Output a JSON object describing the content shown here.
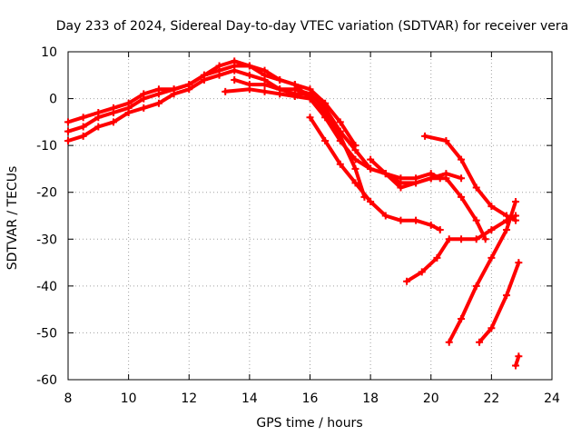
{
  "chart_data": {
    "type": "line",
    "title": "Day 233 of 2024, Sidereal Day-to-day VTEC variation (SDTVAR) for receiver vera",
    "xlabel": "GPS time / hours",
    "ylabel": "SDTVAR / TECUs",
    "xlim": [
      8,
      24
    ],
    "ylim": [
      -60,
      10
    ],
    "xticks": [
      8,
      10,
      12,
      14,
      16,
      18,
      20,
      22,
      24
    ],
    "yticks": [
      10,
      0,
      -10,
      -20,
      -30,
      -40,
      -50,
      -60
    ],
    "grid": true,
    "color": "#ff0000",
    "series": [
      {
        "name": "main",
        "x": [
          8.0,
          8.5,
          9.0,
          9.5,
          10.0,
          10.5,
          11.0,
          11.5,
          12.0,
          12.5,
          13.0,
          13.5,
          14.0,
          14.5,
          15.0,
          15.5,
          16.0,
          16.5,
          17.0,
          17.5,
          18.0,
          18.5,
          19.0,
          19.5,
          20.0,
          20.5,
          21.0
        ],
        "y": [
          -7,
          -6,
          -4,
          -3,
          -2,
          0,
          1,
          2,
          3,
          5,
          7,
          8,
          7,
          5,
          4,
          3,
          0,
          -4,
          -9,
          -13,
          -15,
          -16,
          -18,
          -18,
          -17,
          -16,
          -17
        ]
      },
      {
        "name": "band-upper",
        "x": [
          8.0,
          8.5,
          9.0,
          9.5,
          10.0,
          10.5,
          11.0,
          11.5,
          12.0,
          12.5,
          13.0,
          13.5,
          14.0,
          14.5,
          15.0,
          15.5,
          16.0,
          16.5,
          17.0,
          17.5
        ],
        "y": [
          -5,
          -4,
          -3,
          -2,
          -1,
          1,
          2,
          2,
          3,
          5,
          6,
          7,
          7,
          6,
          4,
          3,
          2,
          -1,
          -5,
          -10
        ]
      },
      {
        "name": "band-lower",
        "x": [
          8.0,
          8.5,
          9.0,
          9.5,
          10.0,
          10.5,
          11.0,
          11.5,
          12.0,
          12.5,
          13.0,
          13.5,
          14.0,
          14.5,
          15.0,
          15.5,
          16.0
        ],
        "y": [
          -9,
          -8,
          -6,
          -5,
          -3,
          -2,
          -1,
          1,
          2,
          4,
          5,
          6,
          5,
          4,
          2,
          2,
          1
        ]
      },
      {
        "name": "s1",
        "x": [
          13.2,
          14.0,
          14.5,
          15.0,
          15.5,
          16.0,
          16.5,
          17.0,
          17.5,
          17.8
        ],
        "y": [
          1.5,
          2,
          1.5,
          1,
          0.5,
          0,
          -3,
          -8,
          -15,
          -21
        ]
      },
      {
        "name": "s2",
        "x": [
          13.5,
          14.0,
          14.5,
          15.0,
          15.5,
          16.0,
          16.5,
          17.0,
          17.5,
          18.0,
          18.5,
          19.0,
          19.5,
          20.0,
          20.3
        ],
        "y": [
          4,
          3,
          3,
          2,
          1,
          1,
          -2,
          -7,
          -11,
          -15,
          -16,
          -17,
          -17,
          -16,
          -17
        ]
      },
      {
        "name": "s3",
        "x": [
          16.0,
          16.5,
          17.0,
          17.5,
          18.0,
          18.5,
          19.0,
          19.5,
          20.0,
          20.3
        ],
        "y": [
          -4,
          -9,
          -14,
          -18,
          -22,
          -25,
          -26,
          -26,
          -27,
          -28
        ]
      },
      {
        "name": "s4",
        "x": [
          19.8,
          20.5,
          21.0,
          21.5,
          22.0,
          22.5,
          22.8
        ],
        "y": [
          -8,
          -9,
          -13,
          -19,
          -23,
          -25,
          -26
        ]
      },
      {
        "name": "s5",
        "x": [
          18.0,
          18.5,
          19.0,
          19.5,
          20.0,
          20.5,
          21.0,
          21.5,
          21.8
        ],
        "y": [
          -13,
          -16,
          -19,
          -18,
          -17,
          -17,
          -21,
          -26,
          -30
        ]
      },
      {
        "name": "s6",
        "x": [
          19.2,
          19.7,
          20.2,
          20.6,
          21.0,
          21.5,
          22.0,
          22.5,
          22.8
        ],
        "y": [
          -39,
          -37,
          -34,
          -30,
          -30,
          -30,
          -28,
          -26,
          -25
        ]
      },
      {
        "name": "s7",
        "x": [
          20.6,
          21.0,
          21.5,
          22.0,
          22.5,
          22.8
        ],
        "y": [
          -52,
          -47,
          -40,
          -34,
          -28,
          -22
        ]
      },
      {
        "name": "s8",
        "x": [
          21.6,
          22.0,
          22.5,
          22.9
        ],
        "y": [
          -52,
          -49,
          -42,
          -35
        ]
      },
      {
        "name": "s9",
        "x": [
          22.8,
          22.9
        ],
        "y": [
          -57,
          -55
        ]
      }
    ]
  }
}
